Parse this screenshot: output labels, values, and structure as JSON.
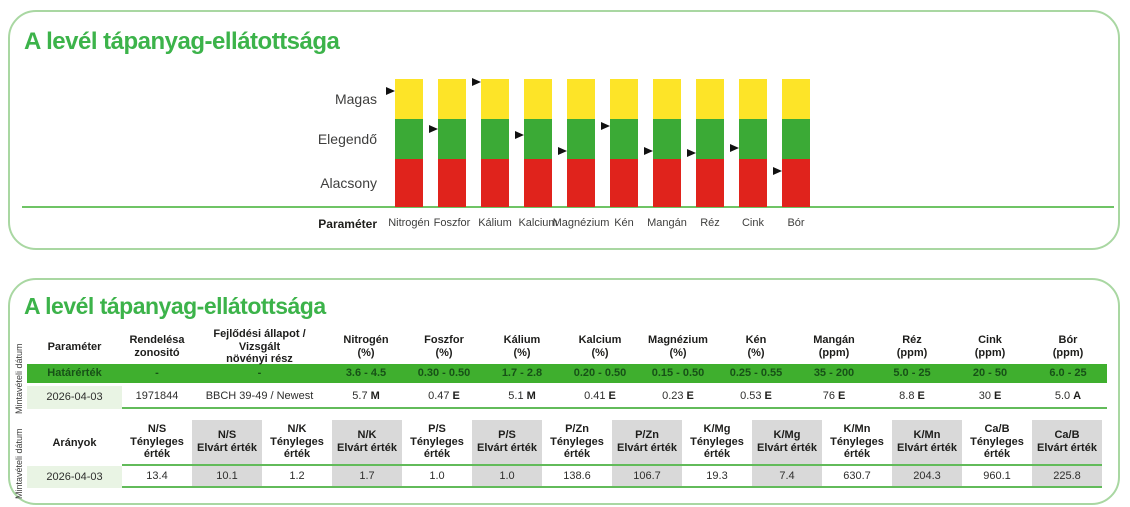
{
  "colors": {
    "accent_green": "#3cb34a",
    "panel_border": "#a9d7a2",
    "bar_yellow": "#fde428",
    "bar_green": "#3baa36",
    "bar_red": "#e0231c",
    "limit_band_bg": "#3faf2e",
    "limit_band_text": "#175117",
    "row_line_green": "#62bb5a",
    "date_cell_bg": "#e9f4e4",
    "gray_cell_bg": "#d9d9d9"
  },
  "chart_data": [
    {
      "type": "bar",
      "subtype": "stacked-range-status-indicator",
      "title": "A levél tápanyag-ellátottsága",
      "x_axis_label": "Paraméter",
      "categories": [
        "Nitrogén",
        "Foszfor",
        "Kálium",
        "Kalcium",
        "Magnézium",
        "Kén",
        "Mangán",
        "Réz",
        "Cink",
        "Bór"
      ],
      "zone_labels": [
        "Magas",
        "Elegendő",
        "Alacsony"
      ],
      "zone_colors": [
        "#fde428",
        "#3baa36",
        "#e0231c"
      ],
      "zone_heights": [
        40,
        40,
        48
      ],
      "legend_position": "left",
      "markers": [
        {
          "category": "Nitrogén",
          "status": "M",
          "frac": 0.09
        },
        {
          "category": "Foszfor",
          "status": "E",
          "frac": 0.39
        },
        {
          "category": "Kálium",
          "status": "M",
          "frac": 0.02
        },
        {
          "category": "Kalcium",
          "status": "E",
          "frac": 0.44
        },
        {
          "category": "Magnézium",
          "status": "E",
          "frac": 0.56
        },
        {
          "category": "Kén",
          "status": "E",
          "frac": 0.37
        },
        {
          "category": "Mangán",
          "status": "E",
          "frac": 0.56
        },
        {
          "category": "Réz",
          "status": "E",
          "frac": 0.58
        },
        {
          "category": "Cink",
          "status": "E",
          "frac": 0.54
        },
        {
          "category": "Bór",
          "status": "A",
          "frac": 0.72
        }
      ]
    },
    {
      "type": "table",
      "title": "A levél tápanyag-ellátottsága",
      "side_labels": [
        "Mintavételi dátum",
        "Mintavételi dátum"
      ],
      "header": [
        [
          "Paraméter",
          ""
        ],
        [
          "Rendelésa",
          "zonositó"
        ],
        [
          "Fejlődési állapot / Vizsgált",
          "növényi rész"
        ],
        [
          "Nitrogén",
          "(%)"
        ],
        [
          "Foszfor",
          "(%)"
        ],
        [
          "Kálium",
          "(%)"
        ],
        [
          "Kalcium",
          "(%)"
        ],
        [
          "Magnézium",
          "(%)"
        ],
        [
          "Kén",
          "(%)"
        ],
        [
          "Mangán",
          "(ppm)"
        ],
        [
          "Réz",
          "(ppm)"
        ],
        [
          "Cink",
          "(ppm)"
        ],
        [
          "Bór",
          "(ppm)"
        ]
      ],
      "limit_row": [
        "Határérték",
        "-",
        "-",
        "3.6 - 4.5",
        "0.30 - 0.50",
        "1.7 - 2.8",
        "0.20 - 0.50",
        "0.15 - 0.50",
        "0.25 - 0.55",
        "35 - 200",
        "5.0 - 25",
        "20 - 50",
        "6.0 - 25"
      ],
      "data_row": {
        "date": "2026-04-03",
        "order_id": "1971844",
        "growth_stage": "BBCH 39-49 / Newest",
        "values": [
          {
            "v": "5.7",
            "s": "M"
          },
          {
            "v": "0.47",
            "s": "E"
          },
          {
            "v": "5.1",
            "s": "M"
          },
          {
            "v": "0.41",
            "s": "E"
          },
          {
            "v": "0.23",
            "s": "E"
          },
          {
            "v": "0.53",
            "s": "E"
          },
          {
            "v": "76",
            "s": "E"
          },
          {
            "v": "8.8",
            "s": "E"
          },
          {
            "v": "30",
            "s": "E"
          },
          {
            "v": "5.0",
            "s": "A"
          }
        ]
      },
      "ratios": {
        "row_label": "Arányok",
        "date": "2026-04-03",
        "actual_label_lines": [
          "Tényleges",
          "érték"
        ],
        "expected_label": "Elvárt érték",
        "pairs": [
          "N/S",
          "N/K",
          "P/S",
          "P/Zn",
          "K/Mg",
          "K/Mn",
          "Ca/B"
        ],
        "actual": [
          "13.4",
          "1.2",
          "1.0",
          "138.6",
          "19.3",
          "630.7",
          "960.1"
        ],
        "expected": [
          "10.1",
          "1.7",
          "1.0",
          "106.7",
          "7.4",
          "204.3",
          "225.8"
        ]
      }
    }
  ]
}
